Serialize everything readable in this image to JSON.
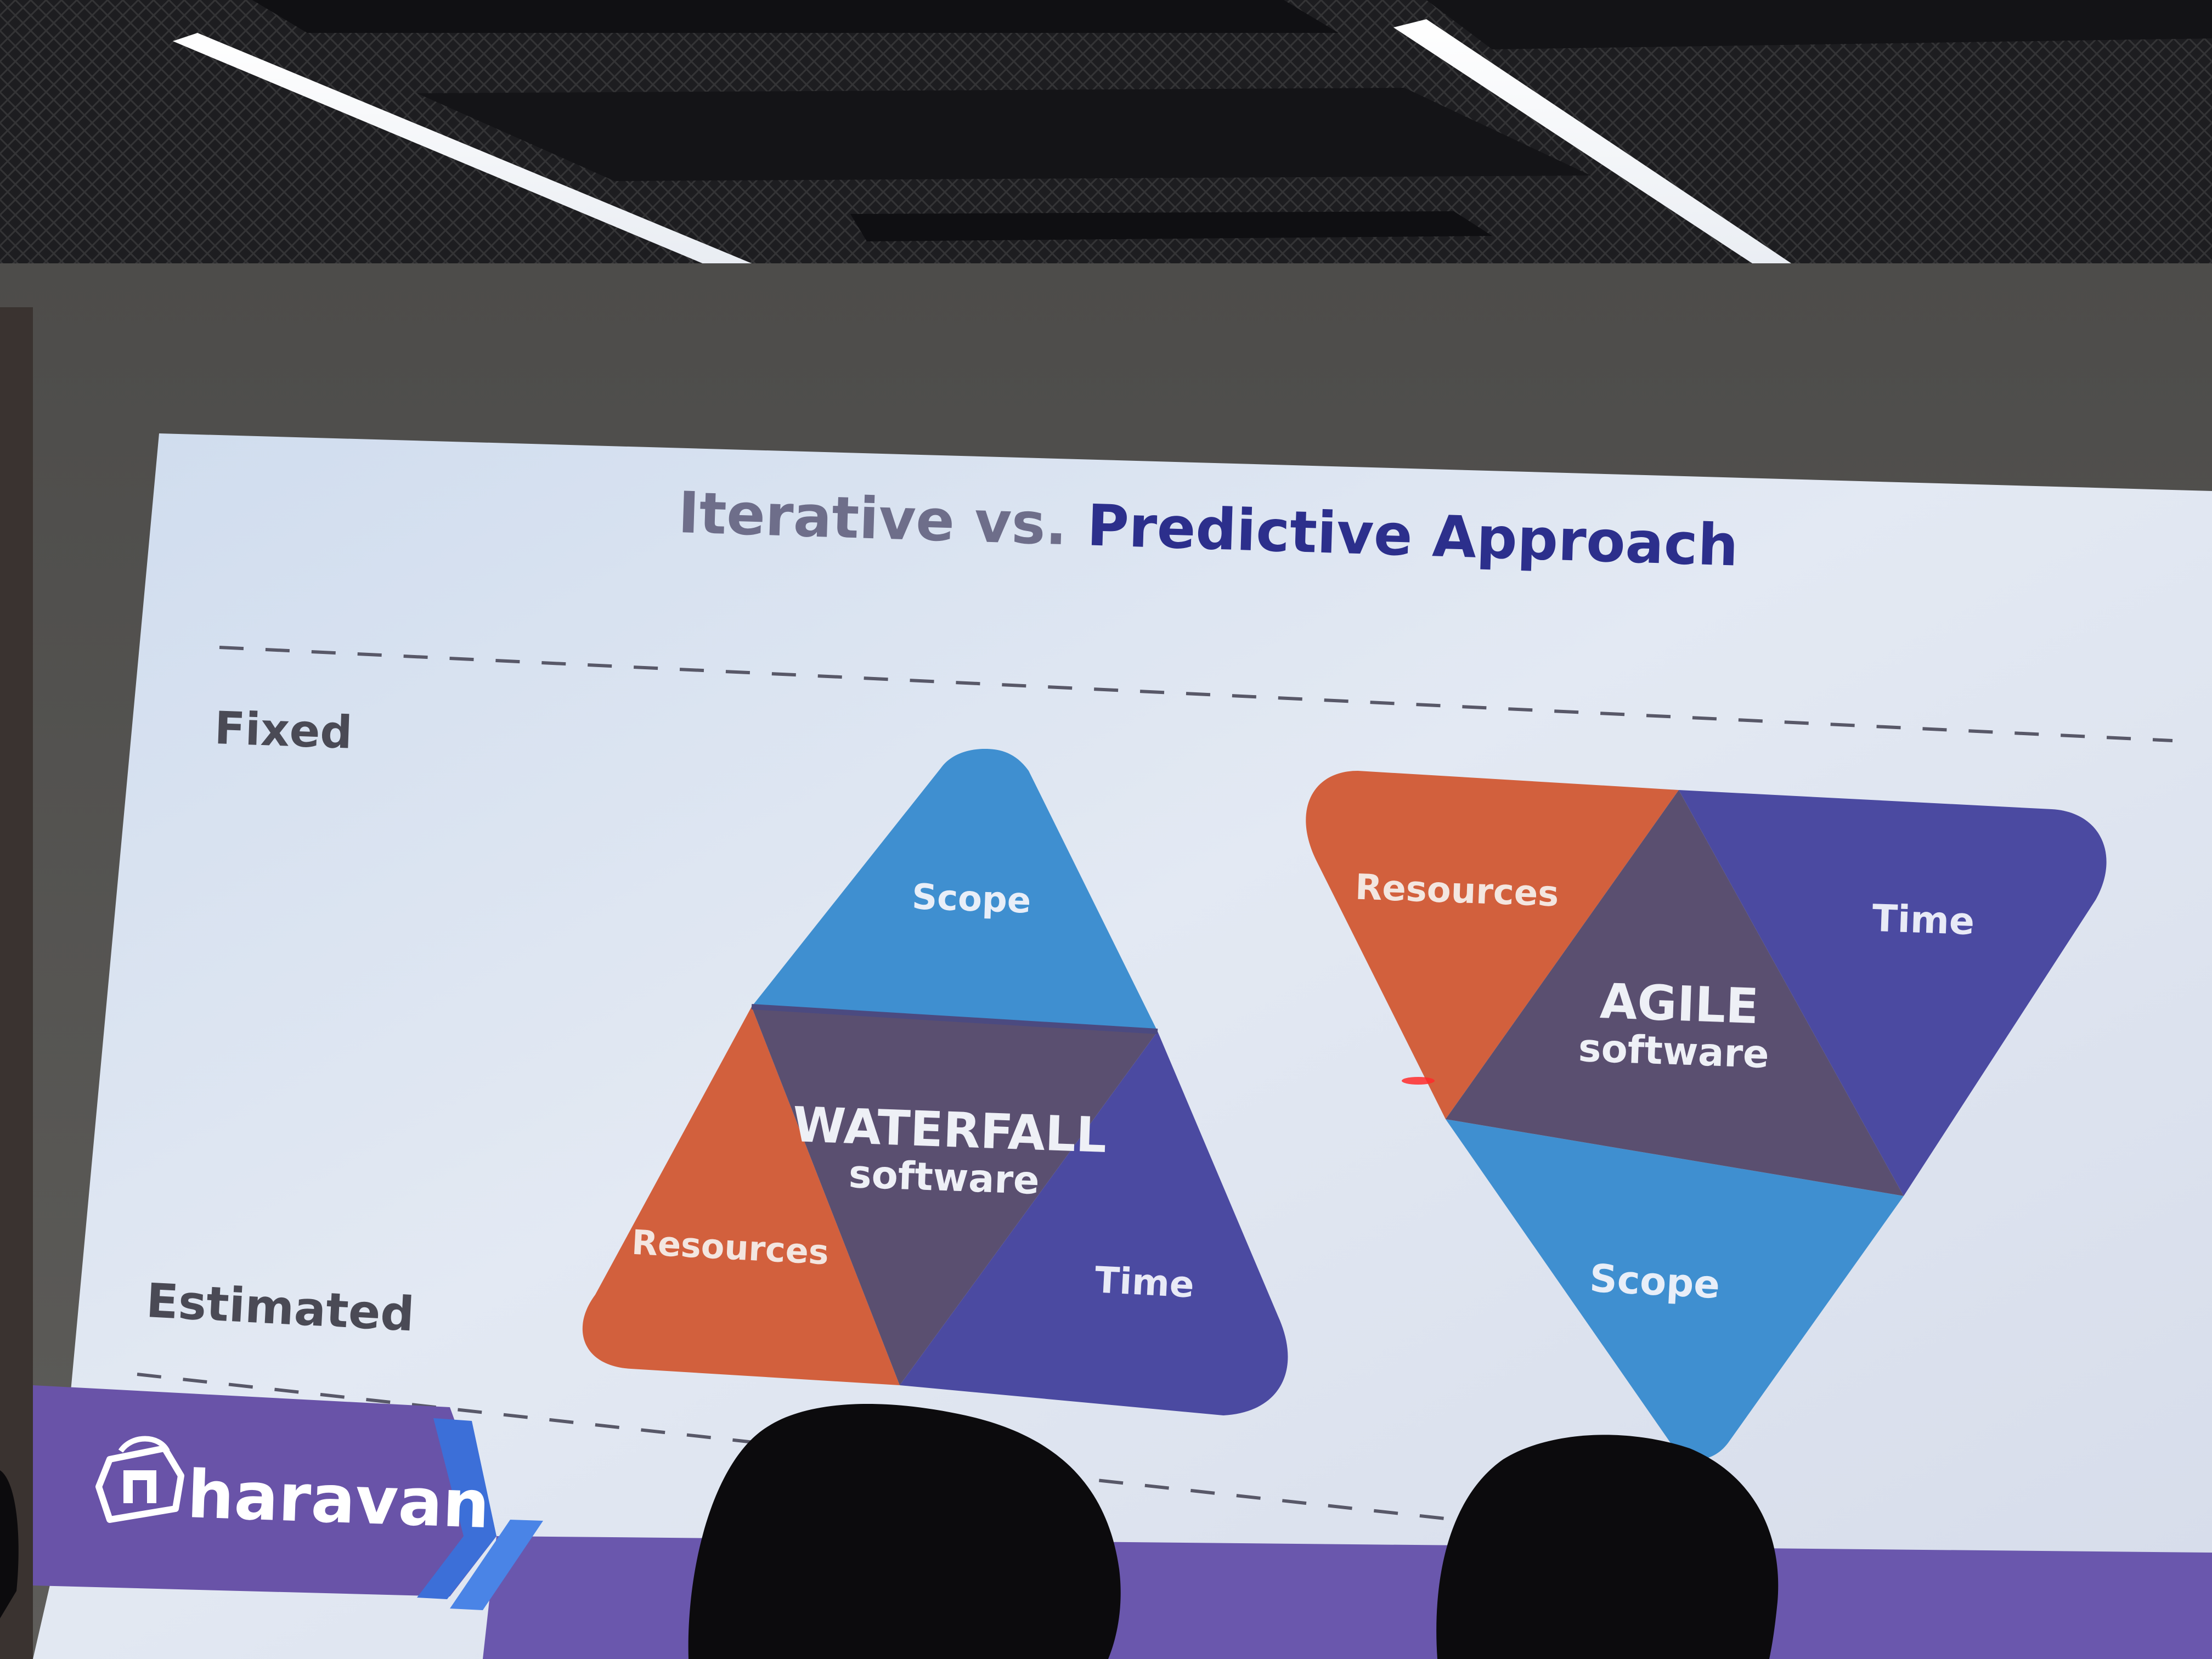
{
  "slide": {
    "title_part1": "Iterative vs. ",
    "title_part2": "Predictive Approach",
    "label_fixed": "Fixed",
    "label_estimated": "Estimated",
    "logo_text": "haravan"
  },
  "waterfall": {
    "top": "Scope",
    "center_line1": "WATERFALL",
    "center_line2": "software",
    "bottom_left": "Resources",
    "bottom_right": "Time"
  },
  "agile": {
    "top_left": "Resources",
    "top_right": "Time",
    "center_line1": "AGILE",
    "center_line2": "software",
    "bottom": "Scope"
  },
  "colors": {
    "scope_blue": "#3f8fd0",
    "resources_orange": "#d2603d",
    "time_purple": "#4b4aa1",
    "center_dark": "#5a4f70",
    "title_gray": "#6e6e8a",
    "title_navy": "#2c2f8c",
    "slide_bg": "#dce4f1",
    "logo_band": "#6953a8"
  }
}
